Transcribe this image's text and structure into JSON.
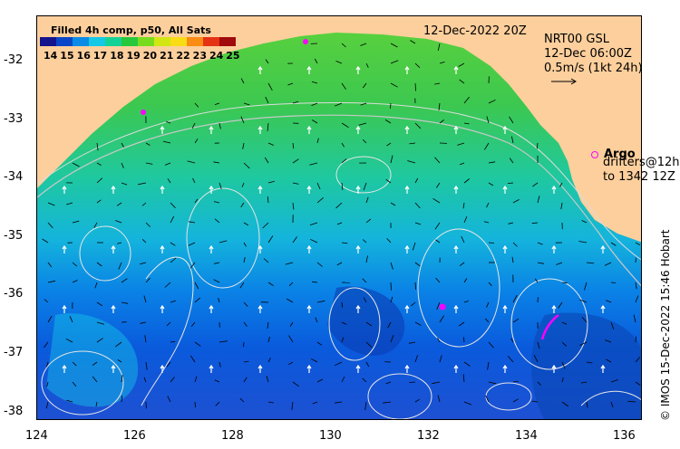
{
  "legend": {
    "title": "Filled 4h comp, p50, All Sats",
    "ticks": [
      "14",
      "15",
      "16",
      "17",
      "18",
      "19",
      "20",
      "21",
      "22",
      "23",
      "24",
      "25"
    ],
    "colors": [
      "#14148c",
      "#0a46c8",
      "#0a8ce6",
      "#14c8e6",
      "#14d296",
      "#28c83c",
      "#78dc1e",
      "#d2e614",
      "#fadc14",
      "#fa8c14",
      "#e63214",
      "#a00a0a"
    ]
  },
  "map": {
    "date_label": "12-Dec-2022 20Z",
    "product_label": "NRT00 GSL",
    "product_time": "12-Dec 06:00Z",
    "scale_label": "0.5m/s (1kt 24h)",
    "argo_label": "Argo",
    "drifters_label": "drifters@12h",
    "drifters_range": "to 1342 12Z",
    "land_color": "#fccf9c",
    "argo_color": "#ff00ff"
  },
  "axes": {
    "x_ticks": [
      "124",
      "126",
      "128",
      "130",
      "132",
      "134",
      "136"
    ],
    "y_ticks": [
      "-32",
      "-33",
      "-34",
      "-35",
      "-36",
      "-37",
      "-38"
    ]
  },
  "credit": "© IMOS 15-Dec-2022 15:46 Hobart"
}
